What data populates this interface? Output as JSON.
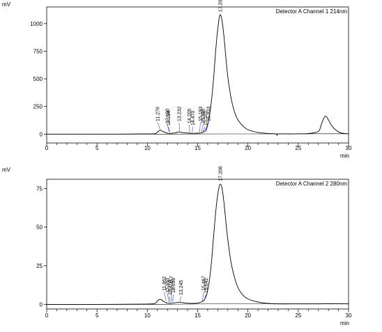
{
  "chart_data": [
    {
      "type": "line",
      "title": "Detector A Channel 1 214nm",
      "ylabel": "mV",
      "xlabel": "min",
      "xlim": [
        0,
        30
      ],
      "ylim": [
        -80,
        1150
      ],
      "xticks": [
        0,
        5,
        10,
        15,
        20,
        25,
        30
      ],
      "yticks": [
        0,
        250,
        500,
        750,
        1000
      ],
      "ytick_labels": [
        "0",
        "250",
        "500",
        "750",
        "1000"
      ],
      "grid": false,
      "peak_labels": [
        {
          "label": "11.276",
          "rt": 11.276,
          "line_y": 30
        },
        {
          "label": "12.190",
          "rt": 12.19,
          "line_y": 6
        },
        {
          "label": "12.234",
          "rt": 12.234,
          "line_y": 6
        },
        {
          "label": "13.232",
          "rt": 13.232,
          "line_y": 15
        },
        {
          "label": "14.205",
          "rt": 14.205,
          "line_y": 6
        },
        {
          "label": "14.470",
          "rt": 14.47,
          "line_y": 6
        },
        {
          "label": "15.193",
          "rt": 15.193,
          "line_y": 5
        },
        {
          "label": "15.395",
          "rt": 15.395,
          "line_y": 5
        },
        {
          "label": "15.520",
          "rt": 15.52,
          "line_y": 5
        },
        {
          "label": "15.833",
          "rt": 15.833,
          "line_y": 5
        },
        {
          "label": "17.204",
          "rt": 17.204,
          "line_y": 1080
        }
      ],
      "trace": {
        "x": [
          0,
          5,
          10,
          10.8,
          11.0,
          11.2,
          11.3,
          11.5,
          11.8,
          12.0,
          12.2,
          12.4,
          12.8,
          13.0,
          13.2,
          13.5,
          14.0,
          14.2,
          14.5,
          15.0,
          15.5,
          15.8,
          16.0,
          16.2,
          16.4,
          16.6,
          16.8,
          17.0,
          17.2,
          17.4,
          17.6,
          17.8,
          18.0,
          18.3,
          18.6,
          19.0,
          19.5,
          20.0,
          21.0,
          22.0,
          22.8,
          22.9,
          23.0,
          24.0,
          25.0,
          26.0,
          27.0,
          27.3,
          27.6,
          27.8,
          28.0,
          28.3,
          28.7,
          29.2,
          30.0
        ],
        "y": [
          0,
          0,
          2,
          6,
          18,
          32,
          35,
          26,
          14,
          8,
          6,
          7,
          12,
          18,
          20,
          14,
          10,
          8,
          7,
          8,
          15,
          40,
          90,
          180,
          320,
          520,
          760,
          950,
          1075,
          1040,
          900,
          700,
          520,
          340,
          220,
          130,
          75,
          40,
          15,
          6,
          2,
          -12,
          2,
          2,
          3,
          5,
          25,
          90,
          155,
          158,
          130,
          80,
          40,
          12,
          2
        ]
      },
      "baseline": {
        "x": [
          0,
          11.0,
          17.5,
          22.0,
          27.0,
          30.0
        ],
        "y": [
          0,
          0,
          2,
          2,
          3,
          3
        ]
      }
    },
    {
      "type": "line",
      "title": "Detector A Channel 2 280nm",
      "ylabel": "mV",
      "xlabel": "min",
      "xlim": [
        0,
        30
      ],
      "ylim": [
        -3,
        81
      ],
      "xticks": [
        0,
        5,
        10,
        15,
        20,
        25,
        30
      ],
      "yticks": [
        0,
        25,
        50,
        75
      ],
      "ytick_labels": [
        "0",
        "25",
        "50",
        "75"
      ],
      "grid": false,
      "peak_labels": [
        {
          "label": "11.862",
          "rt": 11.862,
          "line_y": 1.8
        },
        {
          "label": "12.150",
          "rt": 12.15,
          "line_y": 0.5
        },
        {
          "label": "12.274",
          "rt": 12.274,
          "line_y": 0.5
        },
        {
          "label": "12.417",
          "rt": 12.417,
          "line_y": 0.5
        },
        {
          "label": "12.533",
          "rt": 12.533,
          "line_y": 0.8
        },
        {
          "label": "13.245",
          "rt": 13.245,
          "line_y": 1.0
        },
        {
          "label": "15.467",
          "rt": 15.467,
          "line_y": 0.8
        },
        {
          "label": "15.642",
          "rt": 15.642,
          "line_y": 1.2
        },
        {
          "label": "17.208",
          "rt": 17.208,
          "line_y": 78
        }
      ],
      "trace": {
        "x": [
          0,
          5,
          10,
          10.8,
          11.0,
          11.2,
          11.4,
          11.6,
          11.8,
          12.0,
          12.3,
          12.6,
          13.0,
          13.3,
          13.6,
          14.0,
          14.5,
          15.0,
          15.5,
          15.8,
          16.0,
          16.2,
          16.4,
          16.6,
          16.8,
          17.0,
          17.2,
          17.4,
          17.6,
          17.8,
          18.0,
          18.3,
          18.6,
          19.0,
          19.5,
          20.0,
          21.0,
          22.0,
          23.0,
          25.0,
          27.0,
          28.0,
          30.0
        ],
        "y": [
          0,
          0,
          0.2,
          0.8,
          2.2,
          3.2,
          3.0,
          2.0,
          1.2,
          0.8,
          0.6,
          0.8,
          1.2,
          1.4,
          1.0,
          0.7,
          0.6,
          0.8,
          2.0,
          4.5,
          9,
          17,
          29,
          45,
          60,
          71,
          77.5,
          76,
          67,
          54,
          42,
          28,
          19,
          11,
          6,
          3.5,
          1.5,
          0.6,
          0.3,
          0.3,
          0.3,
          0.4,
          0.3
        ]
      },
      "baseline": {
        "x": [
          0,
          11.0,
          17.5,
          22.0,
          30.0
        ],
        "y": [
          0,
          0,
          0.4,
          0.4,
          0.4
        ]
      }
    }
  ]
}
